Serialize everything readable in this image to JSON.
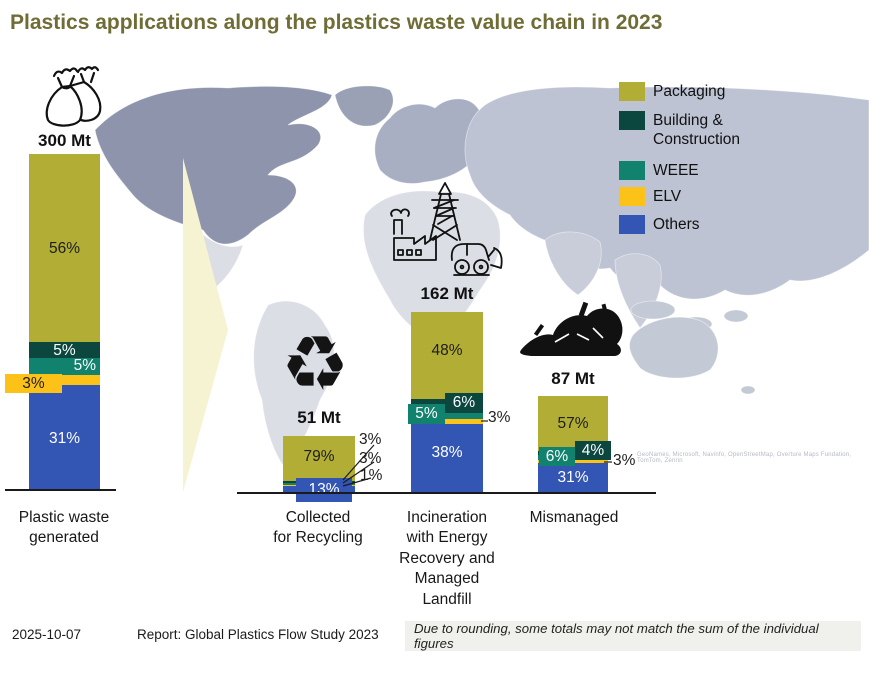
{
  "title": "Plastics applications along the plastics waste value chain in 2023",
  "legend": {
    "items": [
      {
        "key": "packaging",
        "label": "Packaging",
        "color": "#b1ad35"
      },
      {
        "key": "building",
        "label": "Building & Construction",
        "color": "#0b463f"
      },
      {
        "key": "weee",
        "label": "WEEE",
        "color": "#11826d"
      },
      {
        "key": "elv",
        "label": "ELV",
        "color": "#fdc217"
      },
      {
        "key": "others",
        "label": "Others",
        "color": "#3355b4"
      }
    ]
  },
  "chart_data": {
    "type": "bar",
    "stacked": true,
    "unit": "Mt",
    "total_scale_mt": 300,
    "series_order": [
      "Packaging",
      "Building & Construction",
      "WEEE",
      "ELV",
      "Others"
    ],
    "bars": [
      {
        "category": "Plastic waste generated",
        "category_display": "Plastic waste\ngenerated",
        "total_mt": 300,
        "total_label": "300 Mt",
        "segments": [
          {
            "key": "packaging",
            "name": "Packaging",
            "pct": 56,
            "label": "56%"
          },
          {
            "key": "building",
            "name": "Building & Construction",
            "pct": 5,
            "label": "5%"
          },
          {
            "key": "weee",
            "name": "WEEE",
            "pct": 5,
            "label": "5%"
          },
          {
            "key": "elv",
            "name": "ELV",
            "pct": 3,
            "label": "3%"
          },
          {
            "key": "others",
            "name": "Others",
            "pct": 31,
            "label": "31%"
          }
        ]
      },
      {
        "category": "Collected for Recycling",
        "category_display": "Collected\nfor Recycling",
        "total_mt": 51,
        "total_label": "51 Mt",
        "segments": [
          {
            "key": "packaging",
            "name": "Packaging",
            "pct": 79,
            "label": "79%"
          },
          {
            "key": "building",
            "name": "Building & Construction",
            "pct": 3,
            "label": "3%"
          },
          {
            "key": "weee",
            "name": "WEEE",
            "pct": 3,
            "label": "3%"
          },
          {
            "key": "elv",
            "name": "ELV",
            "pct": 1,
            "label": "1%"
          },
          {
            "key": "others",
            "name": "Others",
            "pct": 13,
            "label": "13%"
          }
        ]
      },
      {
        "category": "Incineration with Energy Recovery and Managed Landfill",
        "category_display": "Incineration\nwith Energy\nRecovery and\nManaged\nLandfill",
        "total_mt": 162,
        "total_label": "162 Mt",
        "segments": [
          {
            "key": "packaging",
            "name": "Packaging",
            "pct": 48,
            "label": "48%"
          },
          {
            "key": "building",
            "name": "Building & Construction",
            "pct": 6,
            "label": "6%"
          },
          {
            "key": "weee",
            "name": "WEEE",
            "pct": 5,
            "label": "5%"
          },
          {
            "key": "elv",
            "name": "ELV",
            "pct": 3,
            "label": "3%"
          },
          {
            "key": "others",
            "name": "Others",
            "pct": 38,
            "label": "38%"
          }
        ]
      },
      {
        "category": "Mismanaged",
        "category_display": "Mismanaged",
        "total_mt": 87,
        "total_label": "87 Mt",
        "segments": [
          {
            "key": "packaging",
            "name": "Packaging",
            "pct": 57,
            "label": "57%"
          },
          {
            "key": "building",
            "name": "Building & Construction",
            "pct": 4,
            "label": "4%"
          },
          {
            "key": "weee",
            "name": "WEEE",
            "pct": 6,
            "label": "6%"
          },
          {
            "key": "elv",
            "name": "ELV",
            "pct": 3,
            "label": "3%"
          },
          {
            "key": "others",
            "name": "Others",
            "pct": 31,
            "label": "31%"
          }
        ]
      }
    ]
  },
  "icons": {
    "recycle_glyph": "♻"
  },
  "footer": {
    "date": "2025-10-07",
    "report": "Report: Global Plastics Flow Study 2023",
    "note": "Due to rounding, some totals may not match the sum of the individual figures"
  },
  "map_attribution": "GeoNames, Microsoft, Navinfo, OpenStreetMap, Overture Maps Fundation, TomTom, Zenrin"
}
